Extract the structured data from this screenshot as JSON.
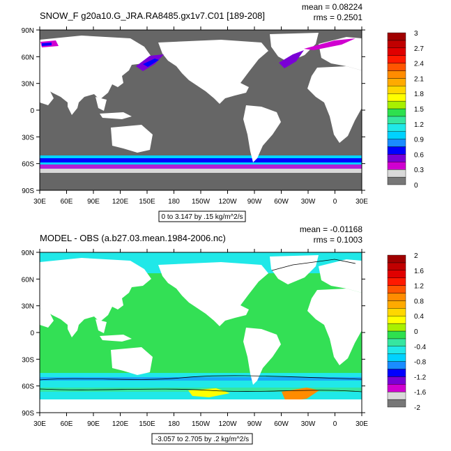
{
  "panels": [
    {
      "title": "SNOW_F g20a10.G_JRA.RA8485.gx1v7.C01 [189-208]",
      "mean_text": "mean = 0.08224",
      "rms_text": "rms = 0.2501",
      "range_text": "0 to 3.147 by .15 kg/m^2/s",
      "y_ticks": [
        "90N",
        "60N",
        "30N",
        "0",
        "30S",
        "60S",
        "90S"
      ],
      "x_ticks": [
        "30E",
        "60E",
        "90E",
        "120E",
        "150E",
        "180",
        "150W",
        "120W",
        "90W",
        "60W",
        "30W",
        "0",
        "30E"
      ],
      "colorbar": {
        "labels": [
          "3",
          "2.7",
          "2.4",
          "2.1",
          "1.8",
          "1.5",
          "1.2",
          "0.9",
          "0.6",
          "0.3",
          "0"
        ],
        "colors": [
          "#777777",
          "#d9d9d9",
          "#d000d0",
          "#7a00d6",
          "#0000ff",
          "#1a8cff",
          "#00d2ff",
          "#20e8e8",
          "#36e6a0",
          "#2ee04e",
          "#a8f000",
          "#ffff00",
          "#ffd700",
          "#ffaa00",
          "#ff8c00",
          "#ff5500",
          "#ff1a00",
          "#e00000",
          "#c00000",
          "#a00000"
        ]
      },
      "map_fields": {
        "ocean_value_color": "#666666",
        "land_color": "#ffffff"
      }
    },
    {
      "title": "MODEL - OBS (a.b27.03.mean.1984-2006.nc)",
      "mean_text": "mean = -0.01168",
      "rms_text": "rms = 0.1003",
      "range_text": "-3.057 to 2.705 by .2 kg/m^2/s",
      "y_ticks": [
        "90N",
        "60N",
        "30N",
        "0",
        "30S",
        "60S",
        "90S"
      ],
      "x_ticks": [
        "30E",
        "60E",
        "90E",
        "120E",
        "150E",
        "180",
        "150W",
        "120W",
        "90W",
        "60W",
        "30W",
        "0",
        "30E"
      ],
      "colorbar": {
        "labels": [
          "2",
          "1.6",
          "1.2",
          "0.8",
          "0.4",
          "0",
          "-0.4",
          "-0.8",
          "-1.2",
          "-1.6",
          "-2"
        ],
        "colors": [
          "#777777",
          "#d9d9d9",
          "#d000d0",
          "#7a00d6",
          "#0000ff",
          "#1a8cff",
          "#00d2ff",
          "#20e8e8",
          "#36e6a0",
          "#2ee04e",
          "#a8f000",
          "#ffff00",
          "#ffd700",
          "#ffaa00",
          "#ff8c00",
          "#ff5500",
          "#ff1a00",
          "#e00000",
          "#c00000",
          "#a00000"
        ]
      },
      "map_fields": {
        "ocean_value_color": "#33e055",
        "land_color": "#ffffff"
      }
    }
  ]
}
